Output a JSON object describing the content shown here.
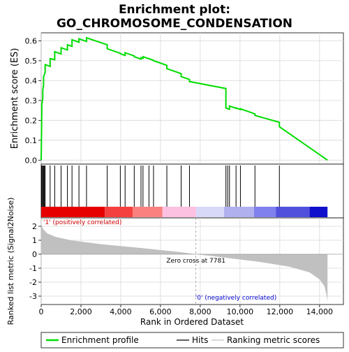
{
  "chart_data": {
    "type": "line",
    "title_line1": "Enrichment plot:",
    "title_line2": "GO_CHROMOSOME_CONDENSATION",
    "top_panel": {
      "ylabel": "Enrichment score (ES)",
      "ylim": [
        -0.02,
        0.64
      ],
      "yticks": [
        "0.0",
        "0.1",
        "0.2",
        "0.3",
        "0.4",
        "0.5",
        "0.6"
      ],
      "ytick_values": [
        0.0,
        0.1,
        0.2,
        0.3,
        0.4,
        0.5,
        0.6
      ],
      "series_color": "#00dd00",
      "es_peaks": [
        {
          "x": 0,
          "y": 0.0
        },
        {
          "x": 30,
          "y": 0.28
        },
        {
          "x": 80,
          "y": 0.35
        },
        {
          "x": 120,
          "y": 0.42
        },
        {
          "x": 200,
          "y": 0.48
        },
        {
          "x": 450,
          "y": 0.51
        },
        {
          "x": 680,
          "y": 0.545
        },
        {
          "x": 1000,
          "y": 0.565
        },
        {
          "x": 1320,
          "y": 0.58
        },
        {
          "x": 1550,
          "y": 0.605
        },
        {
          "x": 1900,
          "y": 0.61
        },
        {
          "x": 2280,
          "y": 0.615
        },
        {
          "x": 3320,
          "y": 0.56
        },
        {
          "x": 3980,
          "y": 0.535
        },
        {
          "x": 4220,
          "y": 0.54
        },
        {
          "x": 4680,
          "y": 0.52
        },
        {
          "x": 5020,
          "y": 0.515
        },
        {
          "x": 5120,
          "y": 0.52
        },
        {
          "x": 5420,
          "y": 0.51
        },
        {
          "x": 5650,
          "y": 0.5
        },
        {
          "x": 6320,
          "y": 0.46
        },
        {
          "x": 7040,
          "y": 0.42
        },
        {
          "x": 7460,
          "y": 0.395
        },
        {
          "x": 9290,
          "y": 0.262
        },
        {
          "x": 9470,
          "y": 0.272
        },
        {
          "x": 9800,
          "y": 0.262
        },
        {
          "x": 10020,
          "y": 0.258
        },
        {
          "x": 10750,
          "y": 0.225
        },
        {
          "x": 11980,
          "y": 0.168
        },
        {
          "x": 14400,
          "y": 0.0
        }
      ]
    },
    "hits": [
      20,
      45,
      80,
      120,
      160,
      200,
      450,
      680,
      1000,
      1320,
      1550,
      1900,
      2280,
      3320,
      3980,
      4220,
      4680,
      5020,
      5120,
      5420,
      5650,
      6320,
      7040,
      7460,
      9290,
      9380,
      9470,
      9800,
      10020,
      10750,
      11980
    ],
    "color_bar_segments": [
      {
        "from": 0,
        "to": 3200,
        "color": "#e60000"
      },
      {
        "from": 3200,
        "to": 4600,
        "color": "#f54040"
      },
      {
        "from": 4600,
        "to": 6100,
        "color": "#fa8080"
      },
      {
        "from": 6100,
        "to": 7781,
        "color": "#fcc0e0"
      },
      {
        "from": 7781,
        "to": 9200,
        "color": "#d8d8f8"
      },
      {
        "from": 9200,
        "to": 10700,
        "color": "#b0b0ee"
      },
      {
        "from": 10700,
        "to": 11800,
        "color": "#8080ee"
      },
      {
        "from": 11800,
        "to": 13500,
        "color": "#5050dd"
      },
      {
        "from": 13500,
        "to": 14400,
        "color": "#1010cc"
      }
    ],
    "metric_panel": {
      "ylabel": "Ranked list metric (Signal2Noise)",
      "ylim": [
        -3.6,
        2.6
      ],
      "yticks": [
        "2",
        "1",
        "0",
        "-1",
        "-2",
        "-3"
      ],
      "ytick_values": [
        2,
        1,
        0,
        -1,
        -2,
        -3
      ],
      "fill_color": "#c0c0c0",
      "metric_curve": [
        {
          "x": 0,
          "y": 2.3
        },
        {
          "x": 30,
          "y": 2.05
        },
        {
          "x": 100,
          "y": 1.8
        },
        {
          "x": 300,
          "y": 1.5
        },
        {
          "x": 700,
          "y": 1.25
        },
        {
          "x": 1500,
          "y": 1.0
        },
        {
          "x": 3000,
          "y": 0.72
        },
        {
          "x": 5000,
          "y": 0.45
        },
        {
          "x": 7000,
          "y": 0.15
        },
        {
          "x": 7781,
          "y": 0.0
        },
        {
          "x": 9000,
          "y": -0.2
        },
        {
          "x": 11000,
          "y": -0.55
        },
        {
          "x": 12500,
          "y": -0.9
        },
        {
          "x": 13500,
          "y": -1.3
        },
        {
          "x": 14000,
          "y": -1.8
        },
        {
          "x": 14250,
          "y": -2.3
        },
        {
          "x": 14350,
          "y": -2.9
        },
        {
          "x": 14400,
          "y": -3.4
        }
      ],
      "zero_cross_label": "Zero cross at 7781",
      "zero_cross_x": 7781,
      "positive_label": "'1' (positively correlated)",
      "negative_label": "'0' (negatively correlated)"
    },
    "xlabel": "Rank in Ordered Dataset",
    "xlim": [
      0,
      15200
    ],
    "xticks": [
      "0",
      "2,000",
      "4,000",
      "6,000",
      "8,000",
      "10,000",
      "12,000",
      "14,000"
    ],
    "xtick_values": [
      0,
      2000,
      4000,
      6000,
      8000,
      10000,
      12000,
      14000
    ],
    "legend": {
      "placement": "bottom",
      "items": [
        {
          "label": "Enrichment profile",
          "color": "#00dd00"
        },
        {
          "label": "Hits",
          "color": "#000000"
        },
        {
          "label": "Ranking metric scores",
          "color": "#c0c0c0"
        }
      ]
    }
  }
}
